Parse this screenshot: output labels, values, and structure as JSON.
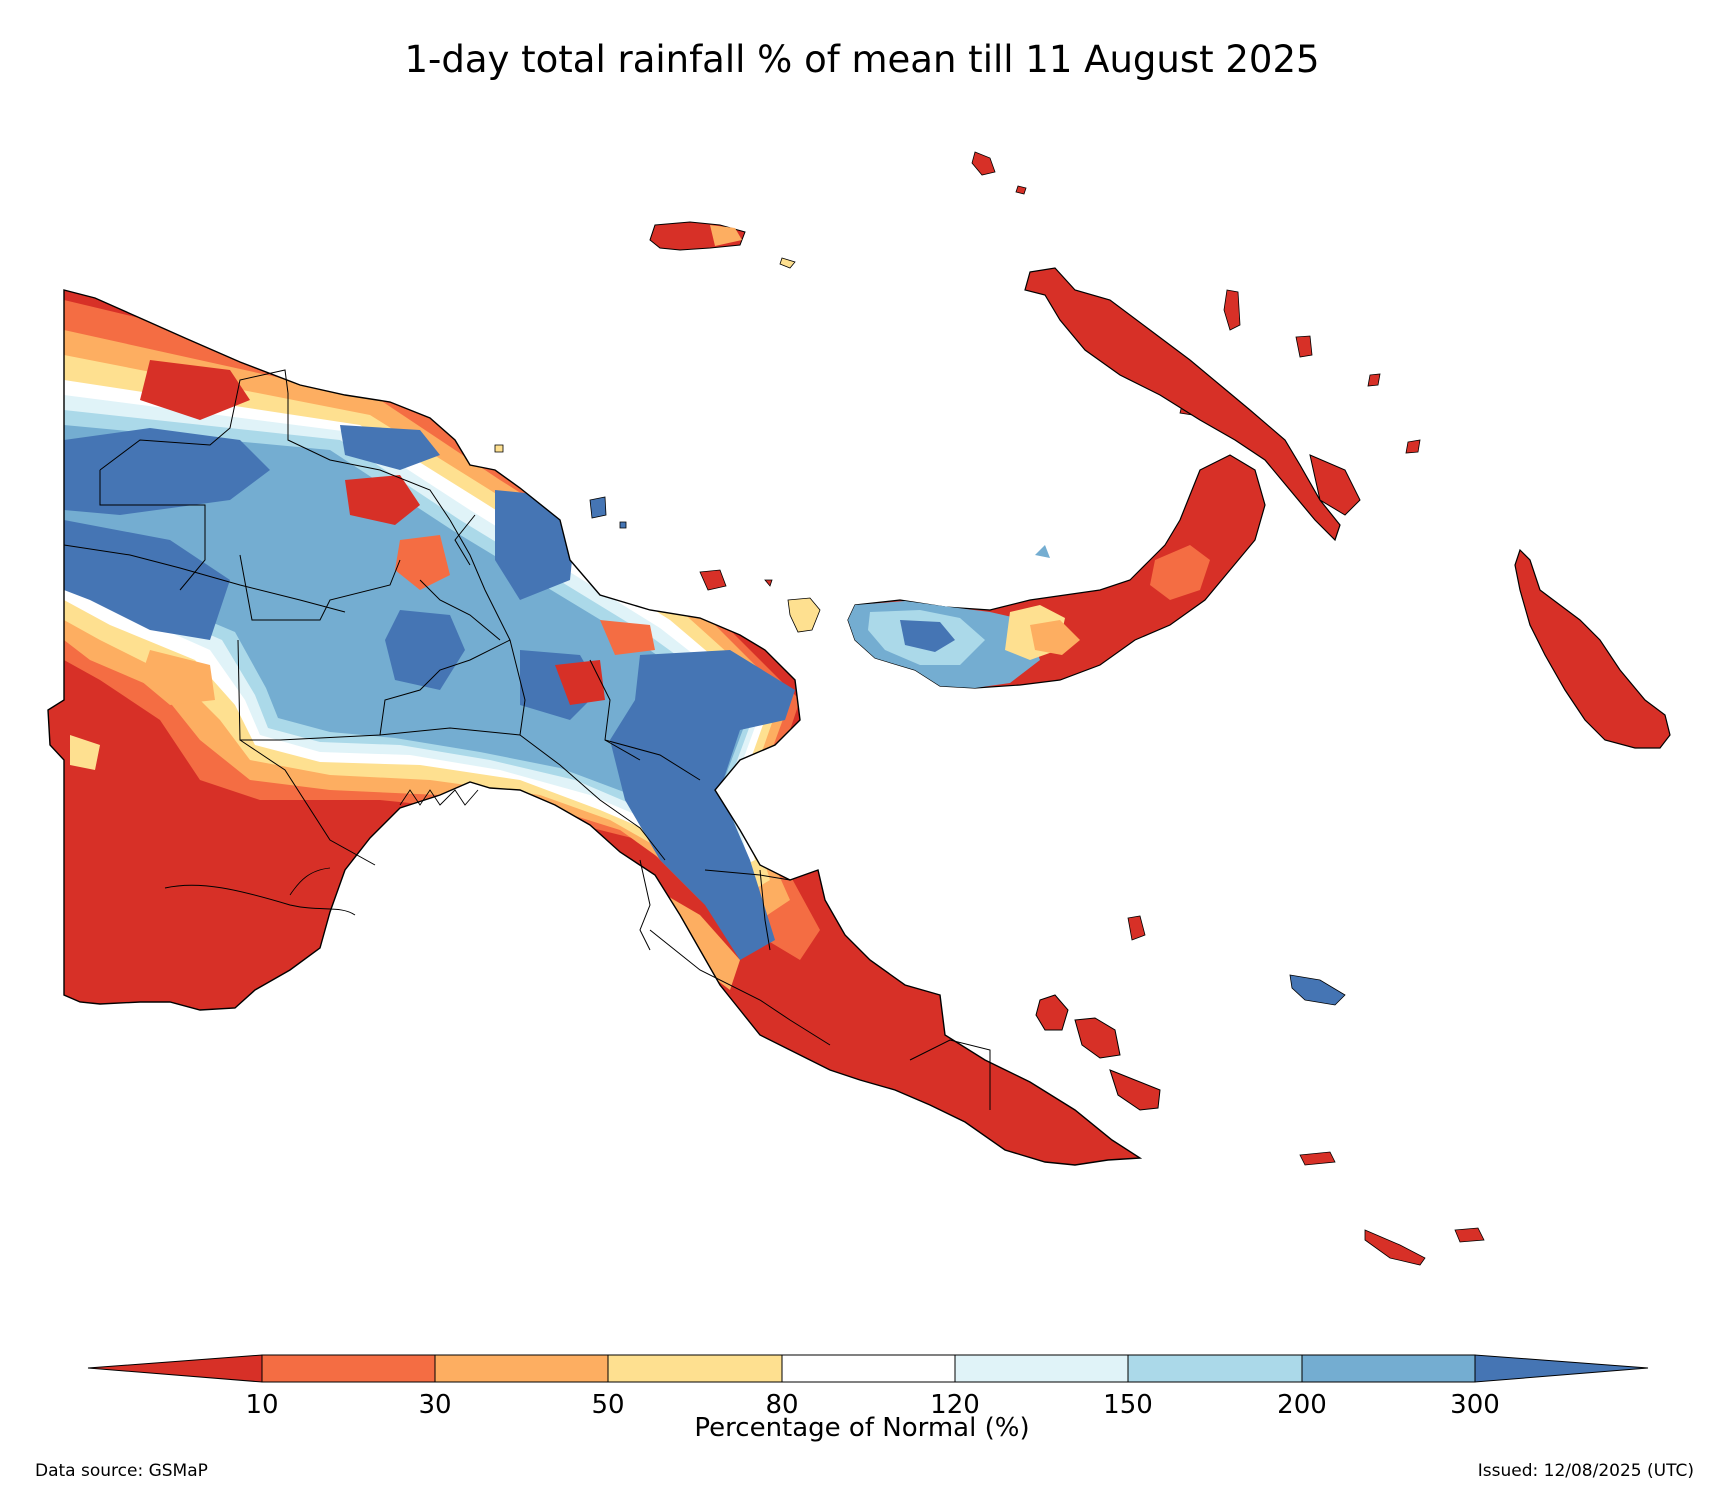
{
  "title": "1-day total rainfall % of mean till 11 August 2025",
  "legend": {
    "label": "Percentage of Normal (%)",
    "ticks": [
      "10",
      "30",
      "50",
      "80",
      "120",
      "150",
      "200",
      "300"
    ],
    "bins": [
      {
        "range": "<10",
        "color": "#d73027"
      },
      {
        "range": "10-30",
        "color": "#f46d43"
      },
      {
        "range": "30-50",
        "color": "#fdae61"
      },
      {
        "range": "50-80",
        "color": "#fee090"
      },
      {
        "range": "80-120",
        "color": "#ffffff"
      },
      {
        "range": "120-150",
        "color": "#e0f3f8"
      },
      {
        "range": "150-200",
        "color": "#abd9e9"
      },
      {
        "range": "200-300",
        "color": "#74add1"
      },
      {
        "range": ">300",
        "color": "#4575b4"
      }
    ]
  },
  "footer": {
    "source": "Data source: GSMaP",
    "issued": "Issued: 12/08/2025 (UTC)"
  }
}
